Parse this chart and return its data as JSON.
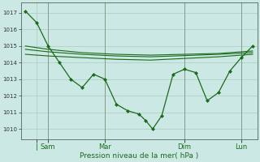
{
  "bg_color": "#cce8e4",
  "grid_color": "#aaccbb",
  "line_color": "#1a6b1a",
  "xlabel": "Pression niveau de la mer( hPa )",
  "ylim": [
    1009.4,
    1017.6
  ],
  "yticks": [
    1010,
    1011,
    1012,
    1013,
    1014,
    1015,
    1016,
    1017
  ],
  "xlim": [
    -0.2,
    10.2
  ],
  "vline_positions": [
    1,
    3.5,
    7,
    9.5
  ],
  "xtick_positions": [
    0.5,
    1,
    3.5,
    7,
    9.5
  ],
  "xtick_labels": [
    "|",
    "Sam",
    "Mar",
    "Dim",
    "Lun"
  ],
  "line1_x": [
    0.0,
    0.5,
    1.0,
    1.5,
    2.0,
    2.5,
    3.0,
    3.5,
    4.0,
    4.5,
    5.0,
    5.3,
    5.6,
    6.0,
    6.5,
    7.0,
    7.5,
    8.0,
    8.5,
    9.0,
    9.5,
    10.0
  ],
  "line1_y": [
    1017.1,
    1016.4,
    1015.0,
    1014.0,
    1013.0,
    1012.5,
    1013.3,
    1013.0,
    1011.5,
    1011.1,
    1010.9,
    1010.5,
    1010.0,
    1010.8,
    1013.3,
    1013.6,
    1013.4,
    1011.7,
    1012.2,
    1013.5,
    1014.3,
    1015.0
  ],
  "line2_x": [
    0.0,
    1.0,
    2.5,
    4.0,
    5.5,
    7.0,
    8.5,
    10.0
  ],
  "line2_y": [
    1015.0,
    1014.8,
    1014.6,
    1014.5,
    1014.45,
    1014.5,
    1014.55,
    1014.7
  ],
  "line3_x": [
    0.0,
    1.0,
    2.5,
    4.0,
    5.5,
    7.0,
    8.5,
    10.0
  ],
  "line3_y": [
    1014.8,
    1014.65,
    1014.5,
    1014.4,
    1014.35,
    1014.42,
    1014.5,
    1014.6
  ],
  "line4_x": [
    0.0,
    1.0,
    2.5,
    4.0,
    5.5,
    7.0,
    8.5,
    10.0
  ],
  "line4_y": [
    1014.5,
    1014.4,
    1014.3,
    1014.2,
    1014.15,
    1014.25,
    1014.35,
    1014.5
  ],
  "figsize": [
    3.2,
    2.0
  ],
  "dpi": 100
}
